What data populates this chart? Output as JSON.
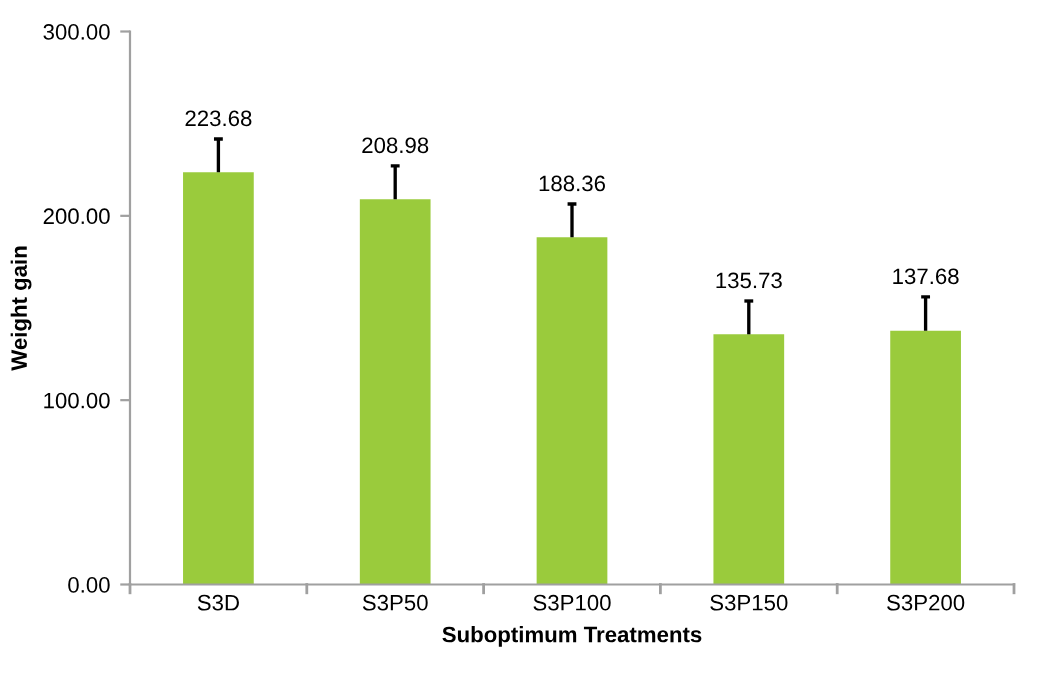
{
  "chart_data": {
    "type": "bar",
    "xlabel": "Suboptimum Treatments",
    "ylabel": "Weight gain",
    "categories": [
      "S3D",
      "S3P50",
      "S3P100",
      "S3P150",
      "S3P200"
    ],
    "values": [
      223.68,
      208.98,
      188.36,
      135.73,
      137.68
    ],
    "errors": [
      [
        223.68,
        241.7
      ],
      [
        208.98,
        227.1
      ],
      [
        188.36,
        206.4
      ],
      [
        135.73,
        153.8
      ],
      [
        137.68,
        156.0
      ]
    ],
    "color": "#9acb3c",
    "data_labels": true,
    "ylim": [
      0,
      300
    ],
    "yticks": [
      {
        "value": 0,
        "label": "0.00"
      },
      {
        "value": 100,
        "label": "100.00"
      },
      {
        "value": 200,
        "label": "200.00"
      },
      {
        "value": 300,
        "label": "300.00"
      }
    ],
    "grid": false,
    "legend": false
  }
}
